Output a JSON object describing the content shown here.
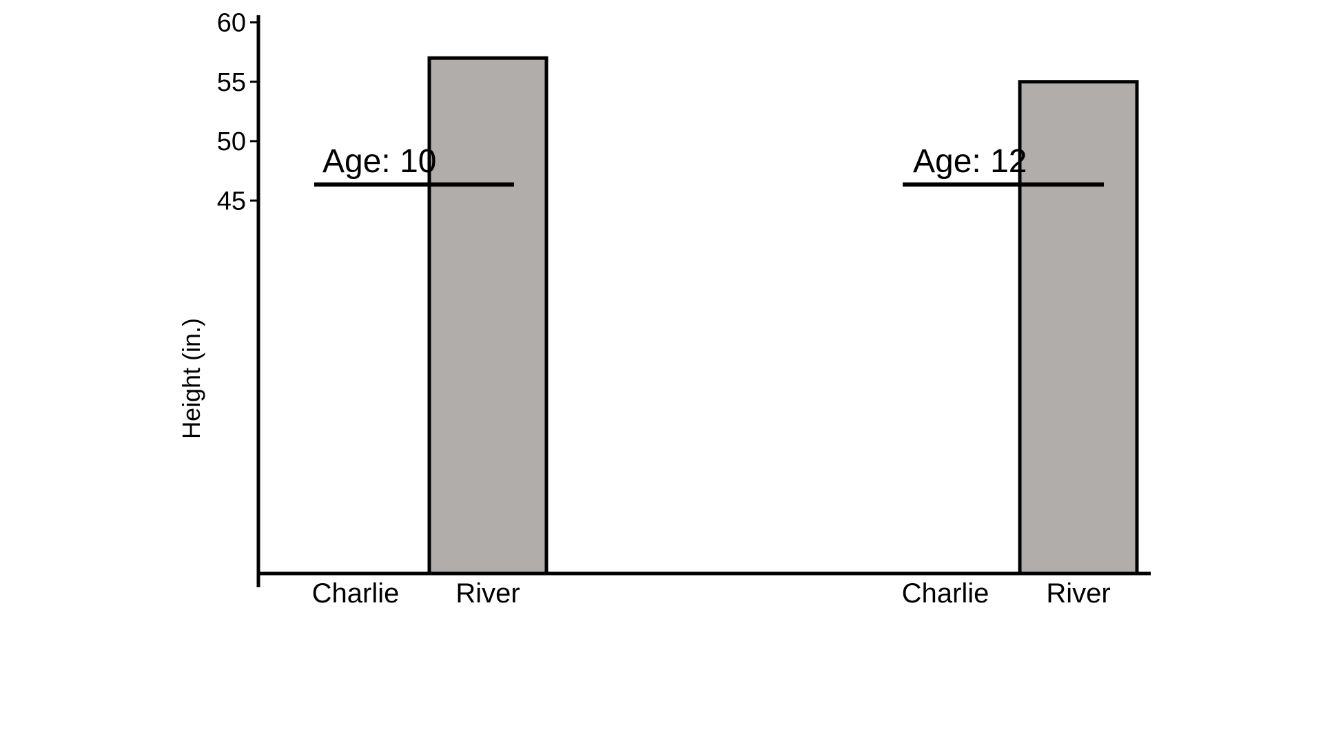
{
  "chart_data": {
    "type": "bar",
    "title": "",
    "xlabel": "",
    "ylabel": "Height (in.)",
    "ylim": [
      44.3,
      60.6
    ],
    "yticks": [
      45,
      50,
      55,
      60
    ],
    "grid": false,
    "groups": [
      {
        "label": "Age: 10",
        "bars": [
          {
            "category": "Charlie",
            "value": null
          },
          {
            "category": "River",
            "value": 57
          }
        ]
      },
      {
        "label": "Age: 12",
        "bars": [
          {
            "category": "Charlie",
            "value": null
          },
          {
            "category": "River",
            "value": 55
          }
        ]
      }
    ],
    "colors": {
      "bar_fill": "#b0adab",
      "bar_stroke": "#000000",
      "axis": "#000000"
    }
  }
}
